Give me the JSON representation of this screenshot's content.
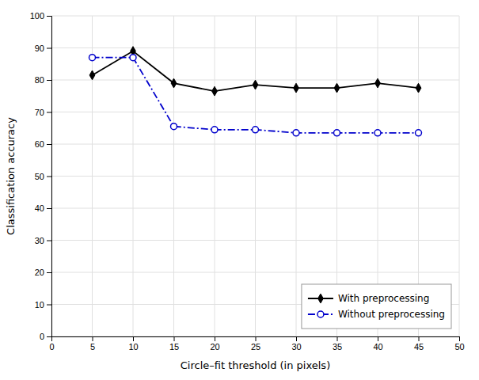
{
  "chart_data": {
    "type": "line",
    "xlabel": "Circle–fit threshold (in pixels)",
    "ylabel": "Classification accuracy",
    "x": [
      5,
      10,
      15,
      20,
      25,
      30,
      35,
      40,
      45
    ],
    "series": [
      {
        "name": "With preprocessing",
        "color": "#000000",
        "marker": "diamond",
        "line_style": "solid",
        "values": [
          81.5,
          89.0,
          79.0,
          76.5,
          78.5,
          77.5,
          77.5,
          79.0,
          77.5
        ]
      },
      {
        "name": "Without preprocessing",
        "color": "#0000cc",
        "marker": "circle",
        "line_style": "dashdot",
        "values": [
          87.0,
          87.0,
          65.5,
          64.5,
          64.5,
          63.5,
          63.5,
          63.5,
          63.5
        ]
      }
    ],
    "xlim": [
      0,
      50
    ],
    "ylim": [
      0,
      100
    ],
    "xticks": [
      0,
      5,
      10,
      15,
      20,
      25,
      30,
      35,
      40,
      45,
      50
    ],
    "yticks": [
      0,
      10,
      20,
      30,
      40,
      50,
      60,
      70,
      80,
      90,
      100
    ],
    "grid": true,
    "legend": "lower right"
  }
}
